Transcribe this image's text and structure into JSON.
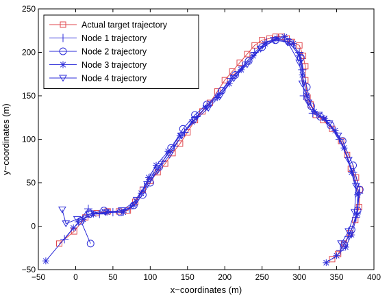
{
  "chart_data": {
    "type": "line",
    "title": "",
    "xlabel": "x−coordinates (m)",
    "ylabel": "y−coordinates (m)",
    "xlim": [
      -50,
      400
    ],
    "ylim": [
      -50,
      250
    ],
    "xticks": [
      -50,
      0,
      50,
      100,
      150,
      200,
      250,
      300,
      350,
      400
    ],
    "yticks": [
      -50,
      0,
      50,
      100,
      150,
      200,
      250
    ],
    "xtick_labels": [
      "−50",
      "0",
      "50",
      "100",
      "150",
      "200",
      "250",
      "300",
      "350",
      "400"
    ],
    "ytick_labels": [
      "−50",
      "0",
      "50",
      "100",
      "150",
      "200",
      "250"
    ],
    "grid": false,
    "legend_position": "top-left",
    "series": [
      {
        "name": "Actual target trajectory",
        "color": "#e0474c",
        "marker": "square",
        "x": [
          -22,
          -2,
          13,
          28,
          43,
          58,
          70,
          80,
          90,
          100,
          110,
          120,
          130,
          140,
          150,
          160,
          170,
          180,
          190,
          200,
          210,
          220,
          230,
          240,
          250,
          260,
          268,
          276,
          283,
          290,
          300,
          305,
          308,
          308,
          311,
          315,
          322,
          332,
          344,
          356,
          364,
          369,
          376,
          381,
          380,
          375,
          368,
          360,
          352,
          344
        ],
        "y": [
          -20,
          -6,
          10,
          15,
          17,
          17,
          18,
          28,
          42,
          52,
          62,
          72,
          84,
          95,
          108,
          122,
          132,
          142,
          155,
          168,
          178,
          188,
          198,
          208,
          214,
          216,
          218,
          218,
          216,
          212,
          208,
          196,
          184,
          168,
          148,
          140,
          128,
          122,
          112,
          98,
          82,
          66,
          56,
          42,
          22,
          7,
          -8,
          -20,
          -32,
          -38
        ]
      },
      {
        "name": "Node 1 trajectory",
        "color": "#2b2bd8",
        "marker": "plus",
        "x": [
          -15,
          4,
          17,
          32,
          50,
          72,
          92,
          104,
          116,
          132,
          146,
          162,
          176,
          192,
          208,
          224,
          240,
          256,
          270,
          284,
          300,
          304,
          306,
          318,
          336,
          354,
          372,
          380,
          376,
          366,
          355
        ],
        "y": [
          -15,
          5,
          20,
          14,
          16,
          20,
          45,
          60,
          74,
          92,
          108,
          126,
          138,
          152,
          170,
          184,
          200,
          212,
          216,
          212,
          200,
          180,
          150,
          130,
          122,
          100,
          62,
          38,
          10,
          -12,
          -28
        ]
      },
      {
        "name": "Node 2 trajectory",
        "color": "#2b2bd8",
        "marker": "circle",
        "x": [
          20,
          7,
          19,
          38,
          60,
          78,
          90,
          100,
          112,
          128,
          144,
          160,
          176,
          196,
          214,
          232,
          250,
          268,
          286,
          302,
          310,
          316,
          328,
          342,
          358,
          372,
          381,
          378,
          370,
          360
        ],
        "y": [
          -20,
          6,
          14,
          18,
          16,
          24,
          36,
          50,
          68,
          90,
          112,
          128,
          140,
          156,
          174,
          190,
          206,
          214,
          212,
          194,
          160,
          138,
          126,
          116,
          98,
          70,
          42,
          18,
          -4,
          -22
        ]
      },
      {
        "name": "Node 3 trajectory",
        "color": "#2b2bd8",
        "marker": "asterisk",
        "x": [
          -40,
          -3,
          10,
          24,
          42,
          64,
          78,
          88,
          98,
          108,
          124,
          140,
          156,
          174,
          190,
          206,
          222,
          238,
          254,
          270,
          280,
          292,
          300,
          304,
          310,
          320,
          334,
          348,
          360,
          370,
          378,
          378,
          370,
          362,
          350,
          336
        ],
        "y": [
          -40,
          -2,
          8,
          14,
          16,
          16,
          24,
          38,
          56,
          70,
          86,
          104,
          120,
          136,
          148,
          164,
          180,
          196,
          210,
          216,
          218,
          210,
          196,
          174,
          150,
          132,
          124,
          110,
          90,
          62,
          36,
          14,
          -10,
          -24,
          -34,
          -42
        ]
      },
      {
        "name": "Node 4 trajectory",
        "color": "#2b2bd8",
        "marker": "triangle-down",
        "x": [
          -18,
          -13,
          2,
          18,
          40,
          62,
          82,
          96,
          110,
          126,
          142,
          160,
          178,
          194,
          212,
          230,
          248,
          266,
          284,
          300,
          304,
          312,
          326,
          340,
          352,
          366,
          376,
          374,
          366,
          356
        ],
        "y": [
          19,
          3,
          8,
          14,
          16,
          18,
          30,
          48,
          64,
          82,
          104,
          122,
          136,
          150,
          170,
          186,
          204,
          214,
          212,
          188,
          164,
          142,
          128,
          118,
          104,
          76,
          46,
          16,
          -6,
          -20
        ]
      }
    ]
  }
}
